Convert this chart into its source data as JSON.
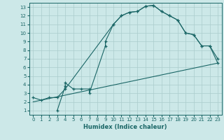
{
  "title": "",
  "xlabel": "Humidex (Indice chaleur)",
  "bg_color": "#cce8e8",
  "grid_color": "#aacccc",
  "line_color": "#1a6666",
  "xlim": [
    -0.5,
    23.5
  ],
  "ylim": [
    0.5,
    13.5
  ],
  "xticks": [
    0,
    1,
    2,
    3,
    4,
    5,
    6,
    7,
    8,
    9,
    10,
    11,
    12,
    13,
    14,
    15,
    16,
    17,
    18,
    19,
    20,
    21,
    22,
    23
  ],
  "yticks": [
    1,
    2,
    3,
    4,
    5,
    6,
    7,
    8,
    9,
    10,
    11,
    12,
    13
  ],
  "line1_x": [
    0,
    1,
    2,
    3,
    4,
    10,
    11,
    12,
    13,
    14,
    15,
    16,
    17,
    18,
    19,
    20,
    21,
    22,
    23
  ],
  "line1_y": [
    2.5,
    2.2,
    2.5,
    2.5,
    3.5,
    11.0,
    12.0,
    12.4,
    12.5,
    13.1,
    13.2,
    12.5,
    12.0,
    11.5,
    10.0,
    9.8,
    8.5,
    8.5,
    6.5
  ],
  "line2_x": [
    3,
    4,
    4,
    5,
    6,
    7,
    7,
    9,
    9,
    10,
    11,
    12,
    13,
    14,
    15,
    16,
    17,
    18,
    19,
    20,
    21,
    22,
    23
  ],
  "line2_y": [
    1.0,
    3.8,
    4.2,
    3.5,
    3.5,
    3.5,
    3.0,
    8.5,
    9.0,
    11.0,
    12.0,
    12.4,
    12.5,
    13.1,
    13.2,
    12.5,
    12.0,
    11.5,
    10.0,
    9.8,
    8.5,
    8.5,
    7.0
  ],
  "line3_x": [
    0,
    23
  ],
  "line3_y": [
    2.0,
    6.5
  ]
}
